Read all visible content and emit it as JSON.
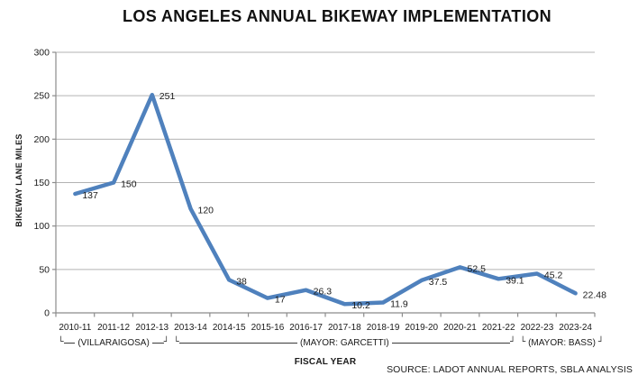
{
  "title": "LOS ANGELES ANNUAL BIKEWAY IMPLEMENTATION",
  "source_note": "SOURCE: LADOT ANNUAL REPORTS, SBLA ANALYSIS",
  "icons": {
    "bracket_left": "└",
    "bracket_right": "┘"
  },
  "colors": {
    "line": "#4F81BD",
    "gridline": "#b3b3b3",
    "axis": "#8c8c8c",
    "text": "#1a1a1a"
  },
  "chart_data": {
    "type": "line",
    "title": "LOS ANGELES ANNUAL BIKEWAY IMPLEMENTATION",
    "xlabel": "FISCAL YEAR",
    "ylabel": "BIKEWAY LANE MILES",
    "categories": [
      "2010-11",
      "2011-12",
      "2012-13",
      "2013-14",
      "2014-15",
      "2015-16",
      "2016-17",
      "2017-18",
      "2018-19",
      "2019-20",
      "2020-21",
      "2021-22",
      "2022-23",
      "2023-24"
    ],
    "values": [
      137,
      150,
      251,
      120,
      38,
      17,
      26.3,
      10.2,
      11.9,
      37.5,
      52.5,
      39.1,
      45.2,
      22.48
    ],
    "data_labels": [
      "137",
      "150",
      "251",
      "120",
      "38",
      "17",
      "26.3",
      "10.2",
      "11.9",
      "37.5",
      "52.5",
      "39.1",
      "45.2",
      "22.48"
    ],
    "ylim": [
      0,
      300
    ],
    "yticks": [
      0,
      50,
      100,
      150,
      200,
      250,
      300
    ],
    "grid": true,
    "legend": "none",
    "line_color": "#4F81BD",
    "annotations": [
      {
        "label": "(VILLARAIGOSA)",
        "from": "2010-11",
        "to": "2012-13"
      },
      {
        "label": "(MAYOR: GARCETTI)",
        "from": "2013-14",
        "to": "2021-22"
      },
      {
        "label": "(MAYOR: BASS)",
        "from": "2022-23",
        "to": "2023-24"
      }
    ]
  }
}
